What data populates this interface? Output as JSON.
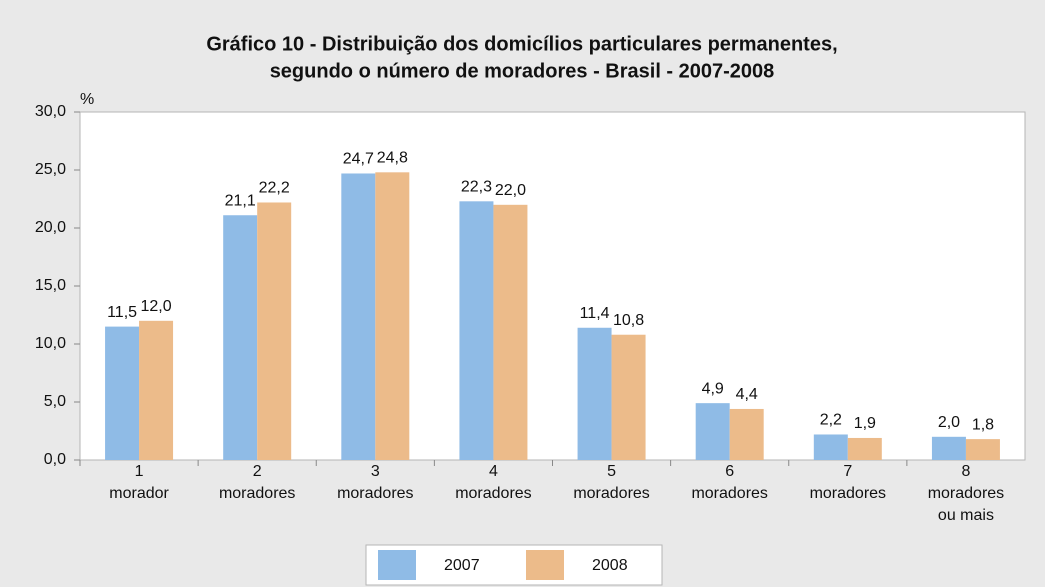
{
  "chart_data": {
    "type": "bar",
    "title": [
      "Gráfico 10 - Distribuição dos domicílios particulares permanentes,",
      "segundo o número de moradores - Brasil - 2007-2008"
    ],
    "y_label": "%",
    "categories": [
      [
        "1",
        "morador"
      ],
      [
        "2",
        "moradores"
      ],
      [
        "3",
        "moradores"
      ],
      [
        "4",
        "moradores"
      ],
      [
        "5",
        "moradores"
      ],
      [
        "6",
        "moradores"
      ],
      [
        "7",
        "moradores"
      ],
      [
        "8",
        "moradores",
        "ou mais"
      ]
    ],
    "series": [
      {
        "name": "2007",
        "color": "#8fbbe6",
        "values": [
          11.5,
          21.1,
          24.7,
          22.3,
          11.4,
          4.9,
          2.2,
          2.0
        ],
        "value_labels": [
          "11,5",
          "21,1",
          "24,7",
          "22,3",
          "11,4",
          "4,9",
          "2,2",
          "2,0"
        ]
      },
      {
        "name": "2008",
        "color": "#ecbb8a",
        "values": [
          12.0,
          22.2,
          24.8,
          22.0,
          10.8,
          4.4,
          1.9,
          1.8
        ],
        "value_labels": [
          "12,0",
          "22,2",
          "24,8",
          "22,0",
          "10,8",
          "4,4",
          "1,9",
          "1,8"
        ]
      }
    ],
    "ylim": [
      0,
      30
    ],
    "yticks": [
      {
        "value": 0,
        "label": "0,0"
      },
      {
        "value": 5,
        "label": "5,0"
      },
      {
        "value": 10,
        "label": "10,0"
      },
      {
        "value": 15,
        "label": "15,0"
      },
      {
        "value": 20,
        "label": "20,0"
      },
      {
        "value": 25,
        "label": "25,0"
      },
      {
        "value": 30,
        "label": "30,0"
      }
    ],
    "grid": false,
    "legend": "bottom"
  }
}
